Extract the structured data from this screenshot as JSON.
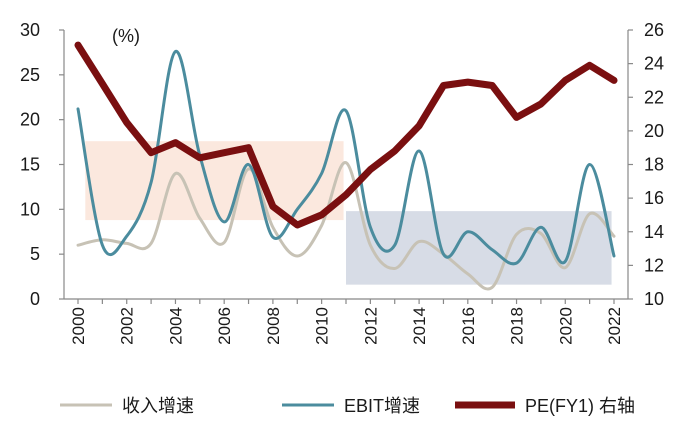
{
  "chart_data": {
    "type": "line",
    "unit_label": "(%)",
    "x": [
      2000,
      2001,
      2002,
      2003,
      2004,
      2005,
      2006,
      2007,
      2008,
      2009,
      2010,
      2011,
      2012,
      2013,
      2014,
      2015,
      2016,
      2017,
      2018,
      2019,
      2020,
      2021,
      2022
    ],
    "x_tick_labels": [
      "2000",
      "2002",
      "2004",
      "2006",
      "2008",
      "2010",
      "2012",
      "2014",
      "2016",
      "2018",
      "2020",
      "2022"
    ],
    "left_axis": {
      "range": [
        0,
        30
      ],
      "ticks": [
        "0",
        "5",
        "10",
        "15",
        "20",
        "25",
        "30"
      ]
    },
    "right_axis": {
      "range": [
        10,
        26
      ],
      "ticks": [
        "10",
        "12",
        "14",
        "16",
        "18",
        "20",
        "22",
        "24",
        "26"
      ]
    },
    "series": [
      {
        "name": "收入增速",
        "axis": "left",
        "color": "#c7c2b5",
        "values": [
          6.0,
          6.6,
          6.2,
          6.2,
          14.0,
          9.0,
          6.3,
          14.5,
          8.0,
          4.8,
          8.2,
          15.2,
          6.0,
          3.4,
          6.4,
          5.0,
          2.8,
          1.3,
          7.2,
          7.3,
          3.5,
          9.5,
          7.0
        ]
      },
      {
        "name": "EBIT增速",
        "axis": "left",
        "color": "#4b8c9e",
        "values": [
          21.2,
          6.0,
          7.0,
          13.0,
          27.6,
          16.0,
          8.6,
          15.0,
          6.9,
          10.0,
          14.0,
          21.0,
          8.0,
          6.0,
          16.5,
          5.0,
          7.5,
          5.5,
          4.0,
          8.0,
          4.2,
          15.0,
          4.8
        ]
      },
      {
        "name": "PE(FY1) 右轴",
        "axis": "right",
        "color": "#7a0f10",
        "values": [
          25.1,
          22.8,
          20.5,
          18.7,
          19.3,
          18.4,
          18.7,
          19.0,
          15.5,
          14.4,
          15.0,
          16.2,
          17.7,
          18.8,
          20.3,
          22.7,
          22.9,
          22.7,
          20.8,
          21.6,
          23.0,
          23.9,
          23.0
        ]
      }
    ],
    "highlight_regions": [
      {
        "x_range": [
          2000.3,
          2010.9
        ],
        "y_range": [
          8.8,
          17.6
        ],
        "axis": "left",
        "color": "#fbe8de"
      },
      {
        "x_range": [
          2011.0,
          2021.9
        ],
        "y_range": [
          1.6,
          9.8
        ],
        "axis": "left",
        "color": "#d7dce6"
      }
    ],
    "legend_position": "bottom",
    "grid": false
  }
}
